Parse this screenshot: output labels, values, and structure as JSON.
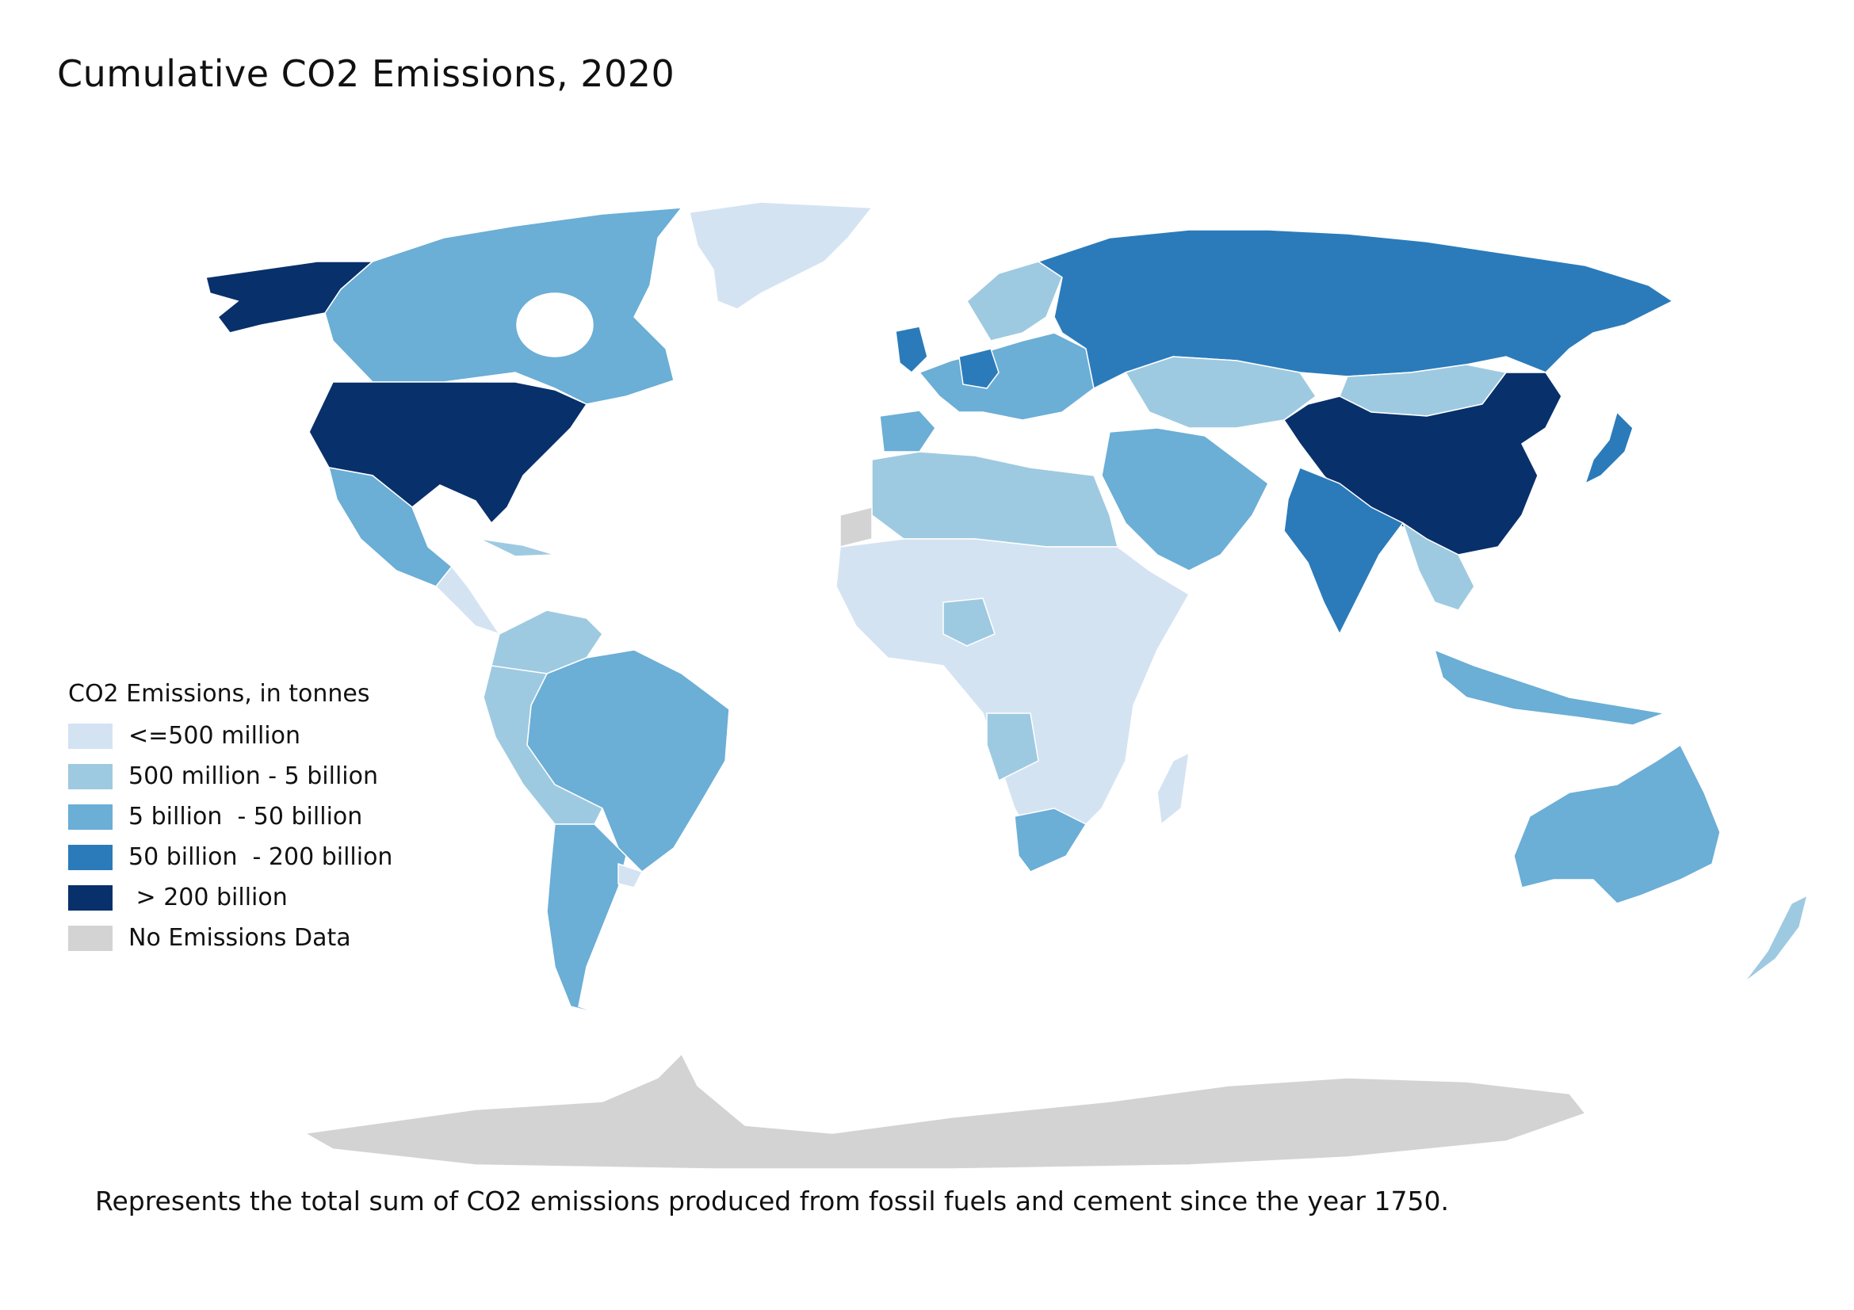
{
  "title": "Cumulative CO2 Emissions, 2020",
  "legend": {
    "title": "CO2 Emissions, in tonnes",
    "items": [
      {
        "label": "<=500 million",
        "color": "#d4e3f2"
      },
      {
        "label": "500 million - 5 billion",
        "color": "#9ecae1"
      },
      {
        "label": "5 billion  - 50 billion",
        "color": "#6baed6"
      },
      {
        "label": "50 billion  - 200 billion",
        "color": "#2b7bba"
      },
      {
        "label": " > 200 billion",
        "color": "#08306b"
      },
      {
        "label": "No Emissions Data",
        "color": "#d3d3d3"
      }
    ]
  },
  "footnote": "Represents the total sum of CO2 emissions produced from fossil fuels and cement since the year 1750.",
  "regions": [
    {
      "name": "United States",
      "category": ">200 billion"
    },
    {
      "name": "China",
      "category": ">200 billion"
    },
    {
      "name": "Russia",
      "category": "50-200 billion"
    },
    {
      "name": "Germany",
      "category": "50-200 billion"
    },
    {
      "name": "United Kingdom",
      "category": "50-200 billion"
    },
    {
      "name": "Japan",
      "category": "50-200 billion"
    },
    {
      "name": "India",
      "category": "50-200 billion"
    },
    {
      "name": "Canada",
      "category": "5-50 billion"
    },
    {
      "name": "Brazil",
      "category": "5-50 billion"
    },
    {
      "name": "Australia",
      "category": "5-50 billion"
    },
    {
      "name": "South Africa",
      "category": "5-50 billion"
    },
    {
      "name": "Mexico",
      "category": "5-50 billion"
    },
    {
      "name": "Argentina",
      "category": "5-50 billion"
    },
    {
      "name": "Greenland",
      "category": "<=500 million"
    },
    {
      "name": "Antarctica",
      "category": "No data"
    }
  ]
}
